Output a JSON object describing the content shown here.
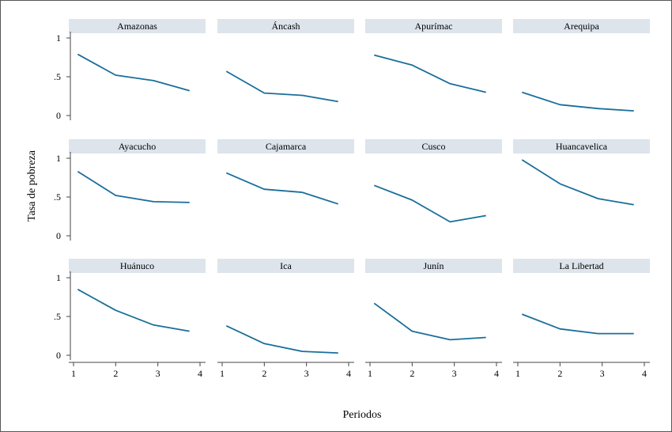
{
  "chart_data": {
    "type": "line",
    "xlabel": "Periodos",
    "ylabel": "Tasa de pobreza",
    "x": [
      1,
      2,
      3,
      4
    ],
    "xlim": [
      1,
      4
    ],
    "ylim": [
      0,
      1
    ],
    "xticks": [
      "1",
      "2",
      "3",
      "4"
    ],
    "yticks": [
      "0",
      ".5",
      "1"
    ],
    "grid": false,
    "panels": [
      {
        "title": "Amazonas",
        "values": [
          0.79,
          0.52,
          0.45,
          0.32
        ]
      },
      {
        "title": "Áncash",
        "values": [
          0.57,
          0.29,
          0.26,
          0.18
        ]
      },
      {
        "title": "Apurímac",
        "values": [
          0.78,
          0.65,
          0.41,
          0.3
        ]
      },
      {
        "title": "Arequipa",
        "values": [
          0.3,
          0.14,
          0.09,
          0.06
        ]
      },
      {
        "title": "Ayacucho",
        "values": [
          0.83,
          0.52,
          0.44,
          0.43
        ]
      },
      {
        "title": "Cajamarca",
        "values": [
          0.81,
          0.6,
          0.56,
          0.41
        ]
      },
      {
        "title": "Cusco",
        "values": [
          0.65,
          0.46,
          0.18,
          0.26
        ]
      },
      {
        "title": "Huancavelica",
        "values": [
          0.98,
          0.67,
          0.48,
          0.4
        ]
      },
      {
        "title": "Huánuco",
        "values": [
          0.85,
          0.58,
          0.39,
          0.31
        ]
      },
      {
        "title": "Ica",
        "values": [
          0.38,
          0.15,
          0.05,
          0.03
        ]
      },
      {
        "title": "Junín",
        "values": [
          0.67,
          0.31,
          0.2,
          0.23
        ]
      },
      {
        "title": "La Libertad",
        "values": [
          0.53,
          0.34,
          0.28,
          0.28
        ]
      }
    ]
  }
}
